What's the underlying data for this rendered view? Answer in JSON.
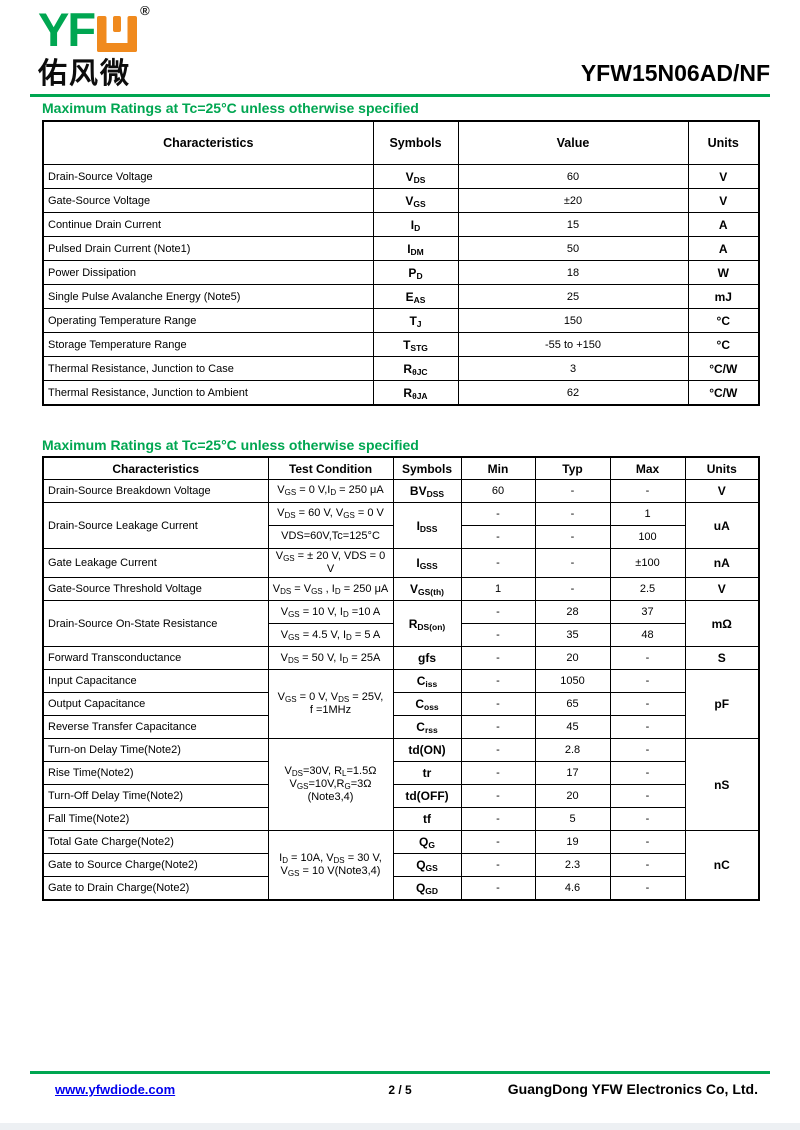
{
  "colors": {
    "brand_green": "#00A651",
    "brand_orange": "#F08A1E",
    "link_blue": "#0000EE"
  },
  "header": {
    "logo_yf": "YF",
    "logo_w_icon": "orange-u-glyph",
    "logo_registered": "®",
    "logo_chinese": "佑风微",
    "part_number": "YFW15N06AD/NF"
  },
  "section1": {
    "title": "Maximum Ratings at Tc=25°C unless otherwise specified",
    "table": {
      "headers": [
        "Characteristics",
        "Symbols",
        "Value",
        "Units"
      ],
      "rows": [
        [
          "Drain-Source Voltage",
          "V~DS~",
          "60",
          "V"
        ],
        [
          "Gate-Source Voltage",
          "V~GS~",
          "±20",
          "V"
        ],
        [
          "Continue Drain Current",
          "I~D~",
          "15",
          "A"
        ],
        [
          "Pulsed Drain Current (Note1)",
          "I~DM~",
          "50",
          "A"
        ],
        [
          "Power Dissipation",
          "P~D~",
          "18",
          "W"
        ],
        [
          "Single Pulse Avalanche Energy (Note5)",
          "E~AS~",
          "25",
          "mJ"
        ],
        [
          "Operating Temperature Range",
          "T~J~",
          "150",
          "°C"
        ],
        [
          "Storage Temperature Range",
          "T~STG~",
          "-55 to +150",
          "°C"
        ],
        [
          "Thermal Resistance, Junction to Case",
          "R~θJC~",
          "3",
          "°C/W"
        ],
        [
          "Thermal Resistance, Junction to Ambient",
          "R~θJA~",
          "62",
          "°C/W"
        ]
      ]
    }
  },
  "section2": {
    "title": "Maximum Ratings at Tc=25°C unless otherwise specified",
    "table": {
      "headers": [
        "Characteristics",
        "Test Condition",
        "Symbols",
        "Min",
        "Typ",
        "Max",
        "Units"
      ],
      "rows": [
        [
          {
            "t": "Drain-Source Breakdown Voltage",
            "k": "char"
          },
          {
            "t": "V~GS~ = 0 V,I~D~ = 250 μA",
            "k": "cond"
          },
          {
            "t": "BV~DSS~",
            "k": "sym"
          },
          {
            "t": "60"
          },
          {
            "t": "-"
          },
          {
            "t": "-"
          },
          {
            "t": "V",
            "k": "unit"
          }
        ],
        [
          {
            "t": "Drain-Source Leakage Current",
            "k": "char",
            "rs": 2
          },
          {
            "t": "V~DS~ = 60 V, V~GS~ = 0 V",
            "k": "cond"
          },
          {
            "t": "I~DSS~",
            "k": "sym",
            "rs": 2
          },
          {
            "t": "-"
          },
          {
            "t": "-"
          },
          {
            "t": "1"
          },
          {
            "t": "uA",
            "k": "unit",
            "rs": 2
          }
        ],
        [
          {
            "t": "VDS=60V,Tc=125°C",
            "k": "cond"
          },
          {
            "t": "-"
          },
          {
            "t": "-"
          },
          {
            "t": "100"
          }
        ],
        [
          {
            "t": "Gate Leakage Current",
            "k": "char"
          },
          {
            "t": "V~GS~ = ± 20 V, VDS = 0 V",
            "k": "cond"
          },
          {
            "t": "I~GSS~",
            "k": "sym"
          },
          {
            "t": "-"
          },
          {
            "t": "-"
          },
          {
            "t": "±100"
          },
          {
            "t": "nA",
            "k": "unit"
          }
        ],
        [
          {
            "t": "Gate-Source Threshold Voltage",
            "k": "char"
          },
          {
            "t": "V~DS~ = V~GS~ , I~D~ = 250 μA",
            "k": "cond"
          },
          {
            "t": "V~GS(th)~",
            "k": "sym"
          },
          {
            "t": "1"
          },
          {
            "t": "-"
          },
          {
            "t": "2.5"
          },
          {
            "t": "V",
            "k": "unit"
          }
        ],
        [
          {
            "t": "Drain-Source On-State Resistance",
            "k": "char",
            "rs": 2
          },
          {
            "t": "V~GS~ = 10 V, I~D~ =10 A",
            "k": "cond"
          },
          {
            "t": "R~DS(on)~",
            "k": "sym",
            "rs": 2
          },
          {
            "t": "-"
          },
          {
            "t": "28"
          },
          {
            "t": "37"
          },
          {
            "t": "mΩ",
            "k": "unit",
            "rs": 2
          }
        ],
        [
          {
            "t": "V~GS~ = 4.5 V, I~D~ = 5 A",
            "k": "cond"
          },
          {
            "t": "-"
          },
          {
            "t": "35"
          },
          {
            "t": "48"
          }
        ],
        [
          {
            "t": "Forward Transconductance",
            "k": "char"
          },
          {
            "t": "V~DS~ = 50 V, I~D~ = 25A",
            "k": "cond"
          },
          {
            "t": "gfs",
            "k": "sym"
          },
          {
            "t": "-"
          },
          {
            "t": "20"
          },
          {
            "t": "-"
          },
          {
            "t": "S",
            "k": "unit"
          }
        ],
        [
          {
            "t": "Input Capacitance",
            "k": "char"
          },
          {
            "t": "V~GS~ = 0 V, V~DS~ = 25V,\nf =1MHz",
            "k": "cond",
            "rs": 3
          },
          {
            "t": "C~iss~",
            "k": "sym"
          },
          {
            "t": "-"
          },
          {
            "t": "1050"
          },
          {
            "t": "-"
          },
          {
            "t": "pF",
            "k": "unit",
            "rs": 3
          }
        ],
        [
          {
            "t": "Output Capacitance",
            "k": "char"
          },
          {
            "t": "C~oss~",
            "k": "sym"
          },
          {
            "t": "-"
          },
          {
            "t": "65"
          },
          {
            "t": "-"
          }
        ],
        [
          {
            "t": "Reverse Transfer Capacitance",
            "k": "char"
          },
          {
            "t": "C~rss~",
            "k": "sym"
          },
          {
            "t": "-"
          },
          {
            "t": "45"
          },
          {
            "t": "-"
          }
        ],
        [
          {
            "t": "Turn-on Delay Time(Note2)",
            "k": "char"
          },
          {
            "t": "V~DS~=30V, R~L~=1.5Ω\nV~GS~=10V,R~G~=3Ω\n(Note3,4)",
            "k": "cond",
            "rs": 4
          },
          {
            "t": "td(ON)",
            "k": "sym"
          },
          {
            "t": "-"
          },
          {
            "t": "2.8"
          },
          {
            "t": "-"
          },
          {
            "t": "nS",
            "k": "unit",
            "rs": 4
          }
        ],
        [
          {
            "t": "Rise Time(Note2)",
            "k": "char"
          },
          {
            "t": "tr",
            "k": "sym"
          },
          {
            "t": "-"
          },
          {
            "t": "17"
          },
          {
            "t": "-"
          }
        ],
        [
          {
            "t": "Turn-Off Delay Time(Note2)",
            "k": "char"
          },
          {
            "t": "td(OFF)",
            "k": "sym"
          },
          {
            "t": "-"
          },
          {
            "t": "20"
          },
          {
            "t": "-"
          }
        ],
        [
          {
            "t": "Fall Time(Note2)",
            "k": "char"
          },
          {
            "t": "tf",
            "k": "sym"
          },
          {
            "t": "-"
          },
          {
            "t": "5"
          },
          {
            "t": "-"
          }
        ],
        [
          {
            "t": "Total Gate Charge(Note2)",
            "k": "char"
          },
          {
            "t": "I~D~ = 10A, V~DS~ = 30 V,\nV~GS~ = 10 V(Note3,4)",
            "k": "cond",
            "rs": 3
          },
          {
            "t": "Q~G~",
            "k": "sym"
          },
          {
            "t": "-"
          },
          {
            "t": "19"
          },
          {
            "t": "-"
          },
          {
            "t": "nC",
            "k": "unit",
            "rs": 3
          }
        ],
        [
          {
            "t": "Gate to Source Charge(Note2)",
            "k": "char"
          },
          {
            "t": "Q~GS~",
            "k": "sym"
          },
          {
            "t": "-"
          },
          {
            "t": "2.3"
          },
          {
            "t": "-"
          }
        ],
        [
          {
            "t": "Gate to Drain Charge(Note2)",
            "k": "char"
          },
          {
            "t": "Q~GD~",
            "k": "sym"
          },
          {
            "t": "-"
          },
          {
            "t": "4.6"
          },
          {
            "t": "-"
          }
        ]
      ]
    }
  },
  "footer": {
    "website": "www.yfwdiode.com",
    "page": "2 / 5",
    "company": "GuangDong YFW Electronics Co, Ltd."
  }
}
